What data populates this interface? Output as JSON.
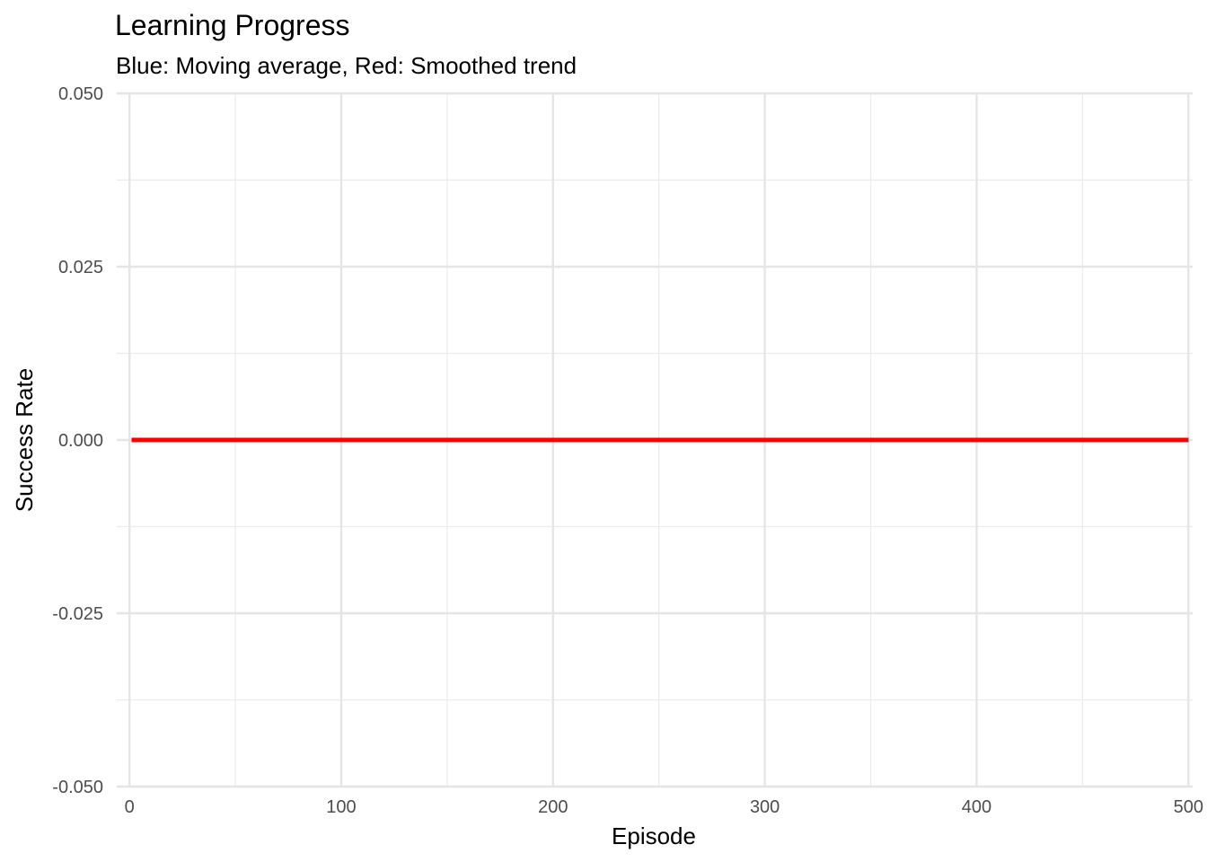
{
  "chart_data": {
    "type": "line",
    "title": "Learning Progress",
    "subtitle": "Blue: Moving average, Red: Smoothed trend",
    "xlabel": "Episode",
    "ylabel": "Success Rate",
    "xlim": [
      -6,
      502
    ],
    "ylim": [
      -0.05,
      0.05
    ],
    "x_ticks": [
      0,
      100,
      200,
      300,
      400,
      500
    ],
    "x_tick_labels": [
      "0",
      "100",
      "200",
      "300",
      "400",
      "500"
    ],
    "x_minor_ticks": [
      50,
      150,
      250,
      350,
      450
    ],
    "y_ticks": [
      -0.05,
      -0.025,
      0,
      0.025,
      0.05
    ],
    "y_tick_labels": [
      "-0.050",
      "-0.025",
      "0.000",
      "0.025",
      "0.050"
    ],
    "y_minor_ticks": [
      -0.0375,
      -0.0125,
      0.0125,
      0.0375
    ],
    "grid": true,
    "series": [
      {
        "name": "Moving average",
        "color": "#0000ff",
        "x": [
          1,
          500
        ],
        "y": [
          0,
          0
        ]
      },
      {
        "name": "Smoothed trend",
        "color": "#ff0000",
        "x": [
          1,
          500
        ],
        "y": [
          0,
          0
        ]
      }
    ]
  }
}
